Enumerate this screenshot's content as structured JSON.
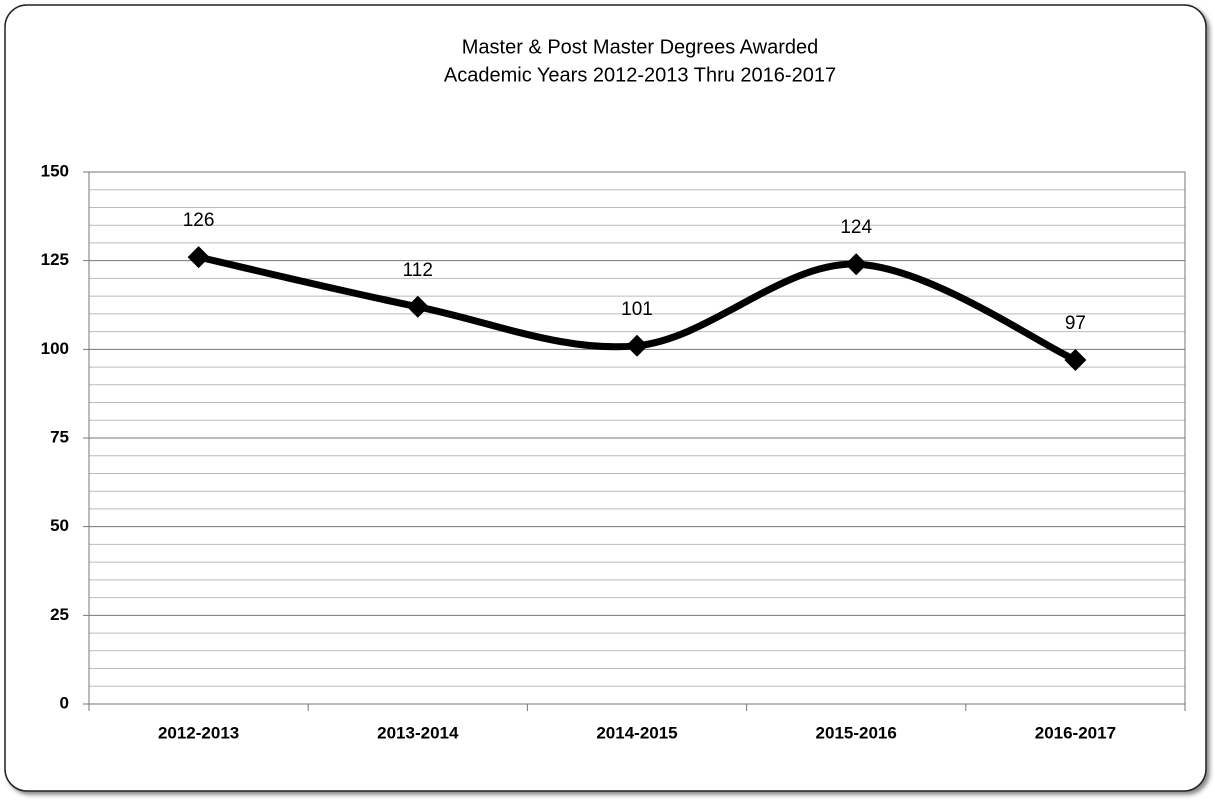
{
  "chart_data": {
    "type": "line",
    "title": [
      "Master & Post Master Degrees Awarded",
      "Academic Years 2012-2013 Thru 2016-2017"
    ],
    "categories": [
      "2012-2013",
      "2013-2014",
      "2014-2015",
      "2015-2016",
      "2016-2017"
    ],
    "series": [
      {
        "name": "Degrees Awarded",
        "color": "#000000",
        "values": [
          126,
          112,
          101,
          124,
          97
        ]
      }
    ],
    "ylim": [
      0,
      150
    ],
    "yticks": [
      0,
      25,
      50,
      75,
      100,
      125,
      150
    ],
    "minor_yticks": [
      5,
      10,
      15,
      20,
      30,
      35,
      40,
      45,
      55,
      60,
      65,
      70,
      80,
      85,
      90,
      95,
      105,
      110,
      115,
      120,
      130,
      135,
      140,
      145
    ],
    "grid": true,
    "smooth": true,
    "data_labels": true
  }
}
